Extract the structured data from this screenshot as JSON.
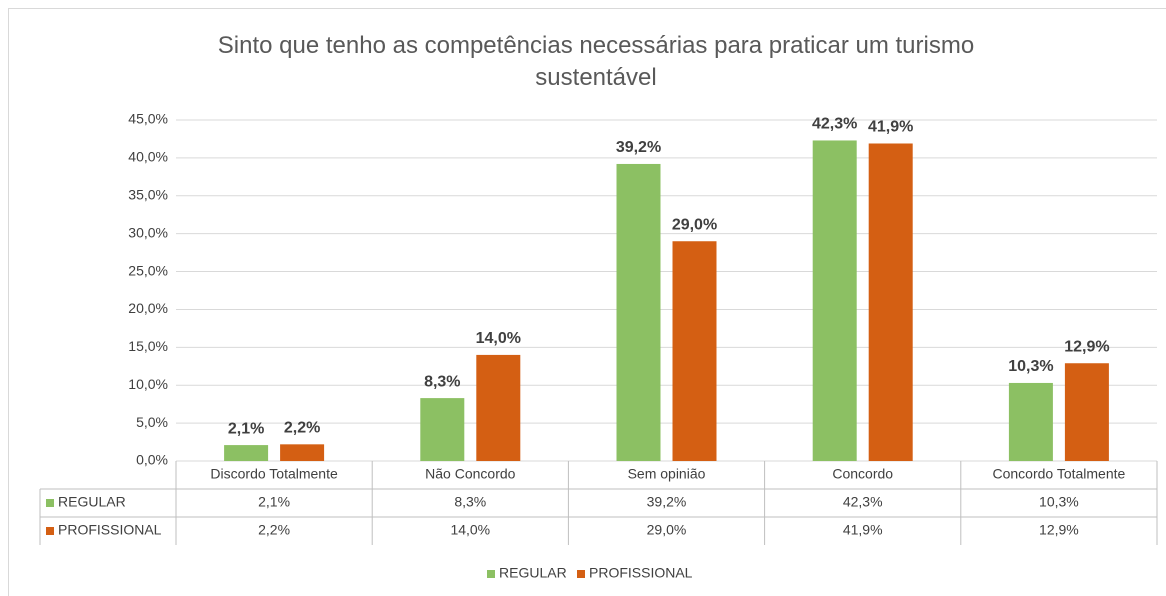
{
  "chart_data": {
    "type": "bar",
    "title": "Sinto que tenho as competências necessárias para praticar um turismo sustentável",
    "categories": [
      "Discordo Totalmente",
      "Não Concordo",
      "Sem opinião",
      "Concordo",
      "Concordo Totalmente"
    ],
    "series": [
      {
        "name": "REGULAR",
        "color": "#8cc063",
        "values": [
          2.1,
          8.3,
          39.2,
          42.3,
          10.3
        ],
        "value_labels": [
          "2,1%",
          "8,3%",
          "39,2%",
          "42,3%",
          "10,3%"
        ]
      },
      {
        "name": "PROFISSIONAL",
        "color": "#d45f13",
        "values": [
          2.2,
          14.0,
          29.0,
          41.9,
          12.9
        ],
        "value_labels": [
          "2,2%",
          "14,0%",
          "29,0%",
          "41,9%",
          "12,9%"
        ]
      }
    ],
    "ylim": [
      0,
      45
    ],
    "yticks": [
      {
        "value": 0,
        "label": "0,0%"
      },
      {
        "value": 5,
        "label": "5,0%"
      },
      {
        "value": 10,
        "label": "10,0%"
      },
      {
        "value": 15,
        "label": "15,0%"
      },
      {
        "value": 20,
        "label": "20,0%"
      },
      {
        "value": 25,
        "label": "25,0%"
      },
      {
        "value": 30,
        "label": "30,0%"
      },
      {
        "value": 35,
        "label": "35,0%"
      },
      {
        "value": 40,
        "label": "40,0%"
      },
      {
        "value": 45,
        "label": "45,0%"
      }
    ],
    "grid": true,
    "legend": "bottom"
  }
}
